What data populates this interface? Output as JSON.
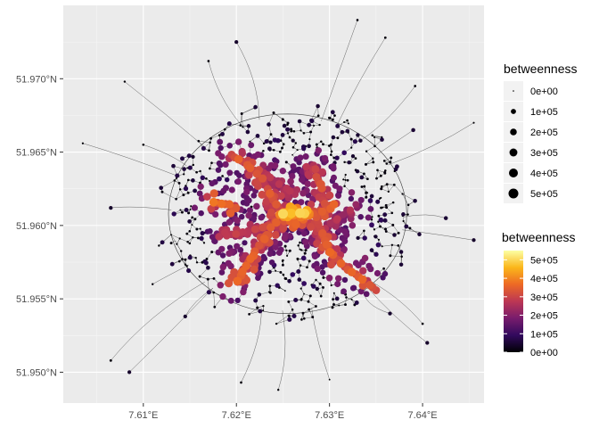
{
  "chart_data": {
    "type": "scatter",
    "title": "",
    "xlabel": "",
    "ylabel": "",
    "xlim": [
      7.6014,
      7.6466
    ],
    "ylim": [
      51.9479,
      51.975
    ],
    "x_ticks": [
      {
        "value": 7.61,
        "label": "7.61°E"
      },
      {
        "value": 7.62,
        "label": "7.62°E"
      },
      {
        "value": 7.63,
        "label": "7.63°E"
      },
      {
        "value": 7.64,
        "label": "7.64°E"
      }
    ],
    "y_ticks": [
      {
        "value": 51.95,
        "label": "51.950°N"
      },
      {
        "value": 51.955,
        "label": "51.955°N"
      },
      {
        "value": 51.96,
        "label": "51.960°N"
      },
      {
        "value": 51.965,
        "label": "51.965°N"
      },
      {
        "value": 51.97,
        "label": "51.970°N"
      }
    ],
    "grid": true,
    "background": "#ebebeb",
    "size_legend": {
      "title": "betweenness",
      "entries": [
        {
          "value": 0,
          "label": "0e+00"
        },
        {
          "value": 100000,
          "label": "1e+05"
        },
        {
          "value": 200000,
          "label": "2e+05"
        },
        {
          "value": 300000,
          "label": "3e+05"
        },
        {
          "value": 400000,
          "label": "4e+05"
        },
        {
          "value": 500000,
          "label": "5e+05"
        }
      ]
    },
    "color_legend": {
      "title": "betweenness",
      "min": 0,
      "max": 550000,
      "palette": [
        "#000004",
        "#320a5e",
        "#781c6d",
        "#bc3754",
        "#ed6925",
        "#fbb61a",
        "#fcffa4"
      ],
      "entries": [
        {
          "value": 0,
          "label": "0e+00"
        },
        {
          "value": 100000,
          "label": "1e+05"
        },
        {
          "value": 200000,
          "label": "2e+05"
        },
        {
          "value": 300000,
          "label": "3e+05"
        },
        {
          "value": 400000,
          "label": "4e+05"
        },
        {
          "value": 500000,
          "label": "5e+05"
        }
      ]
    },
    "edge_color": "#3a3a3a",
    "high_betweenness_paths": [
      {
        "betweenness": 360000,
        "points": [
          [
            7.6243,
            51.9602
          ],
          [
            7.6278,
            51.9607
          ],
          [
            7.6301,
            51.9611
          ]
        ]
      },
      {
        "betweenness": 450000,
        "points": [
          [
            7.625,
            51.9608
          ],
          [
            7.6278,
            51.9608
          ]
        ]
      },
      {
        "betweenness": 330000,
        "points": [
          [
            7.6242,
            51.9603
          ],
          [
            7.623,
            51.9591
          ],
          [
            7.6218,
            51.958
          ],
          [
            7.6206,
            51.9568
          ],
          [
            7.62,
            51.9562
          ]
        ]
      },
      {
        "betweenness": 320000,
        "points": [
          [
            7.6246,
            51.961
          ],
          [
            7.6236,
            51.9622
          ],
          [
            7.6228,
            51.9632
          ],
          [
            7.6212,
            51.9641
          ],
          [
            7.6195,
            51.9648
          ]
        ]
      },
      {
        "betweenness": 330000,
        "points": [
          [
            7.6284,
            51.9609
          ],
          [
            7.6292,
            51.9595
          ],
          [
            7.63,
            51.9582
          ],
          [
            7.6316,
            51.9572
          ],
          [
            7.6336,
            51.9563
          ],
          [
            7.635,
            51.9556
          ]
        ]
      },
      {
        "betweenness": 300000,
        "points": [
          [
            7.6295,
            51.9615
          ],
          [
            7.629,
            51.9628
          ],
          [
            7.6283,
            51.9638
          ]
        ]
      },
      {
        "betweenness": 280000,
        "points": [
          [
            7.6236,
            51.96
          ],
          [
            7.6212,
            51.9596
          ],
          [
            7.619,
            51.9593
          ]
        ]
      },
      {
        "betweenness": 350000,
        "points": [
          [
            7.6193,
            51.9614
          ],
          [
            7.6175,
            51.9616
          ]
        ]
      },
      {
        "betweenness": 260000,
        "points": [
          [
            7.623,
            51.9636
          ],
          [
            7.6246,
            51.9628
          ],
          [
            7.6262,
            51.9622
          ]
        ]
      },
      {
        "betweenness": 250000,
        "points": [
          [
            7.6292,
            51.9596
          ],
          [
            7.6308,
            51.9604
          ],
          [
            7.6322,
            51.961
          ]
        ]
      }
    ]
  }
}
